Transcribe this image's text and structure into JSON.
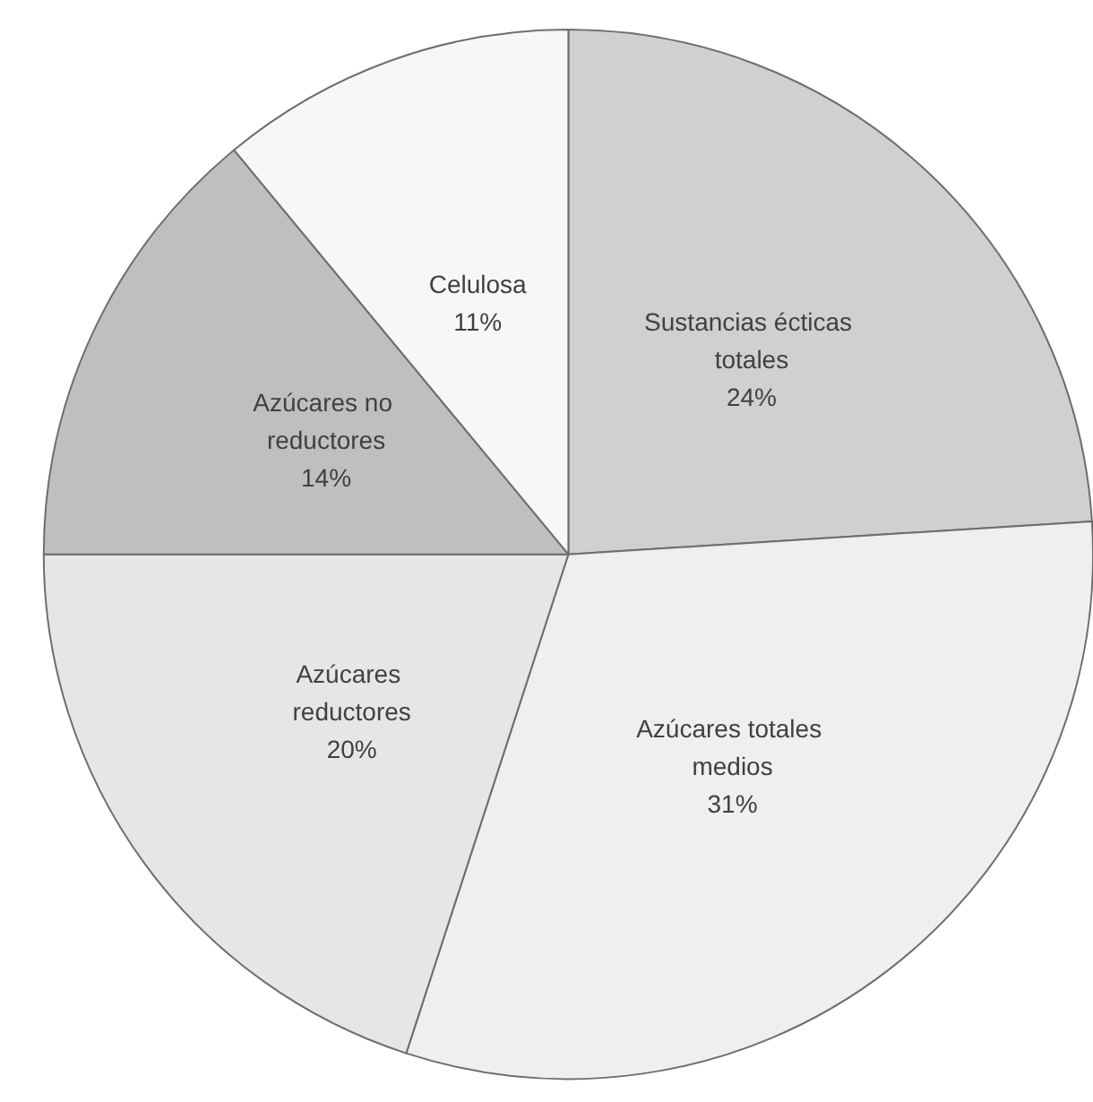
{
  "chart_data": {
    "type": "pie",
    "categories": [
      "Sustancias écticas totales",
      "Azúcares totales medios",
      "Azúcares reductores",
      "Azúcares no reductores",
      "Celulosa"
    ],
    "values": [
      24,
      31,
      20,
      14,
      11
    ],
    "colors": [
      "#d0d0d0",
      "#efefef",
      "#e6e6e6",
      "#bfbfbf",
      "#f7f7f7"
    ],
    "value_labels": [
      "24%",
      "31%",
      "20%",
      "14%",
      "11%"
    ],
    "legend": false
  }
}
